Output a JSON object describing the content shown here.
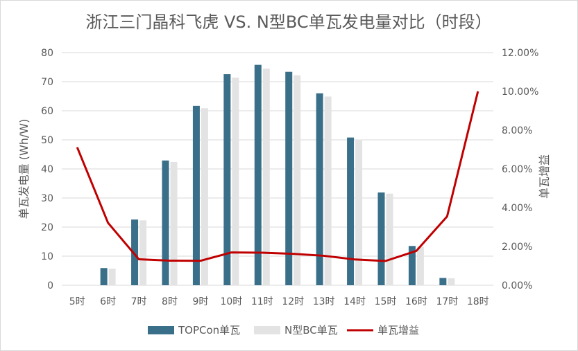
{
  "chart_data": {
    "type": "bar",
    "title": "浙江三门晶科飞虎 VS. N型BC单瓦发电量对比（时段）",
    "categories": [
      "5时",
      "6时",
      "7时",
      "8时",
      "9时",
      "10时",
      "11时",
      "12时",
      "13时",
      "14时",
      "15时",
      "16时",
      "17时",
      "18时"
    ],
    "series": [
      {
        "name": "TOPCon单瓦",
        "type": "bar",
        "axis": "left",
        "color": "#3a6f8a",
        "values": [
          0,
          5.9,
          22.6,
          42.9,
          61.7,
          72.6,
          75.8,
          73.4,
          66.0,
          50.8,
          31.9,
          13.5,
          2.5,
          0
        ]
      },
      {
        "name": "N型BC单瓦",
        "type": "bar",
        "axis": "left",
        "color": "#e3e3e3",
        "values": [
          0,
          5.7,
          22.3,
          42.4,
          60.9,
          71.4,
          74.5,
          72.2,
          64.9,
          50.1,
          31.5,
          13.2,
          2.4,
          0
        ]
      },
      {
        "name": "单瓦增益",
        "type": "line",
        "axis": "right",
        "color": "#c00000",
        "values": [
          0.0712,
          0.0322,
          0.0134,
          0.0127,
          0.0126,
          0.0169,
          0.0168,
          0.0162,
          0.0152,
          0.0133,
          0.0125,
          0.0177,
          0.0355,
          0.1
        ]
      }
    ],
    "ylabel": "单瓦发电量 (Wh/W)",
    "y2label": "单瓦增益",
    "ylim": [
      0,
      80
    ],
    "yticks": [
      0,
      10,
      20,
      30,
      40,
      50,
      60,
      70,
      80
    ],
    "y2lim": [
      0,
      0.12
    ],
    "y2ticks": [
      "0.00%",
      "2.00%",
      "4.00%",
      "6.00%",
      "8.00%",
      "10.00%",
      "12.00%"
    ],
    "grid": true,
    "legend_position": "bottom"
  }
}
